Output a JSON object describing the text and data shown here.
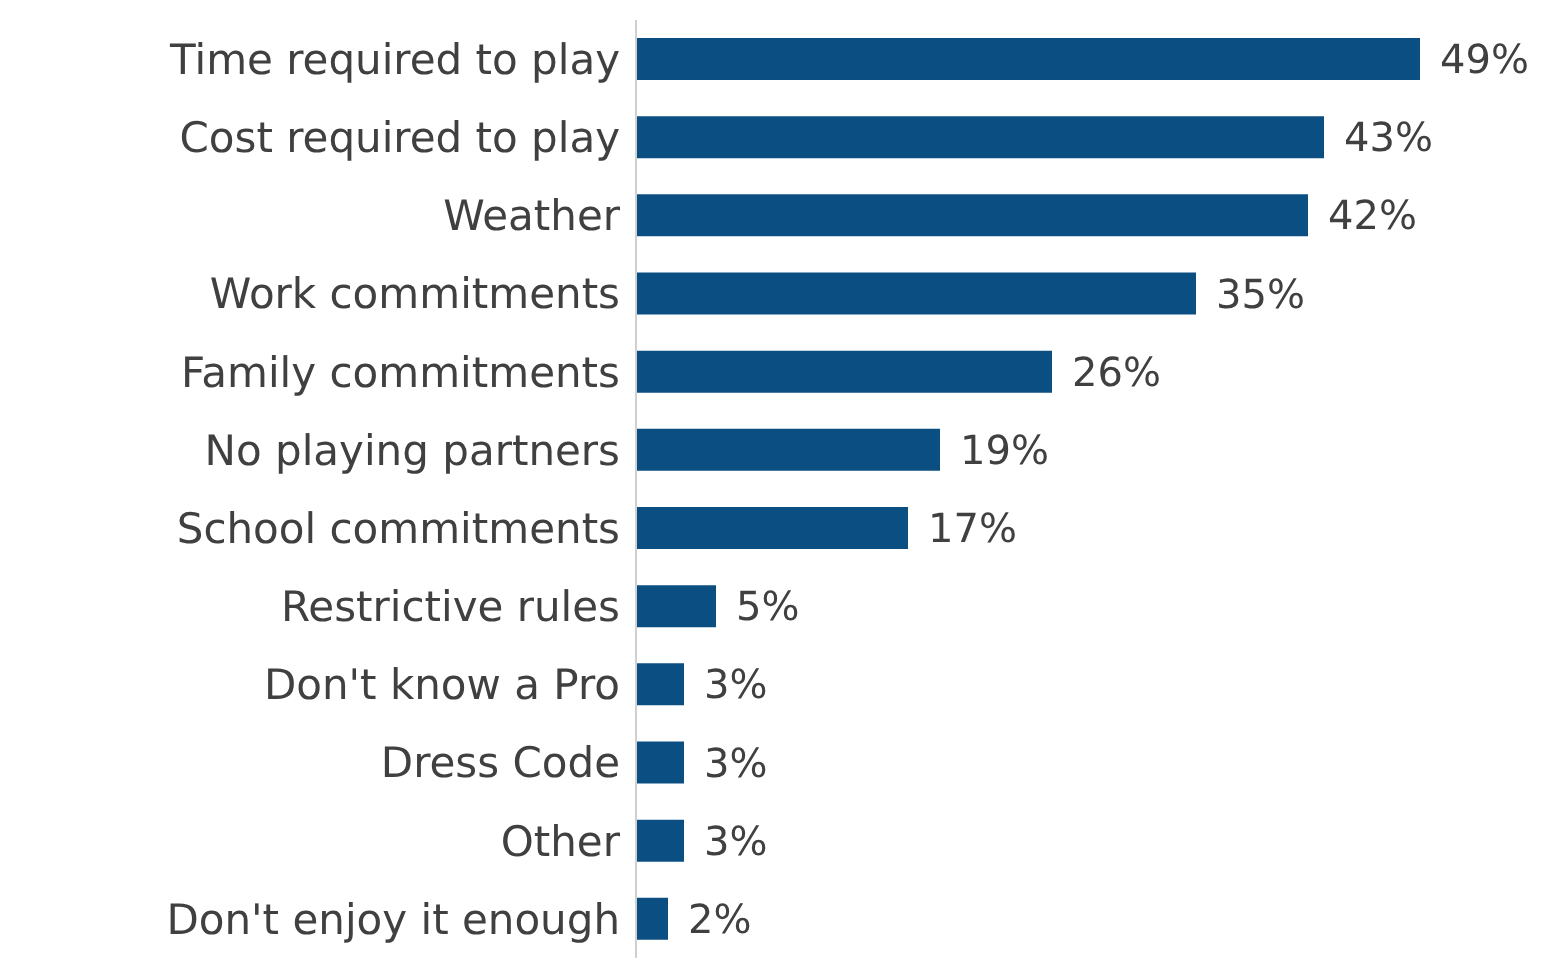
{
  "chart_data": {
    "type": "bar",
    "orientation": "horizontal",
    "categories": [
      "Time required to play",
      "Cost required to play",
      "Weather",
      "Work commitments",
      "Family commitments",
      "No playing partners",
      "School commitments",
      "Restrictive rules",
      "Don't know a Pro",
      "Dress Code",
      "Other",
      "Don't enjoy it enough"
    ],
    "values": [
      49,
      43,
      42,
      35,
      26,
      19,
      17,
      5,
      3,
      3,
      3,
      2
    ],
    "value_labels": [
      "49%",
      "43%",
      "42%",
      "35%",
      "26%",
      "19%",
      "17%",
      "5%",
      "3%",
      "3%",
      "3%",
      "2%"
    ],
    "color": "#0b4f82"
  }
}
